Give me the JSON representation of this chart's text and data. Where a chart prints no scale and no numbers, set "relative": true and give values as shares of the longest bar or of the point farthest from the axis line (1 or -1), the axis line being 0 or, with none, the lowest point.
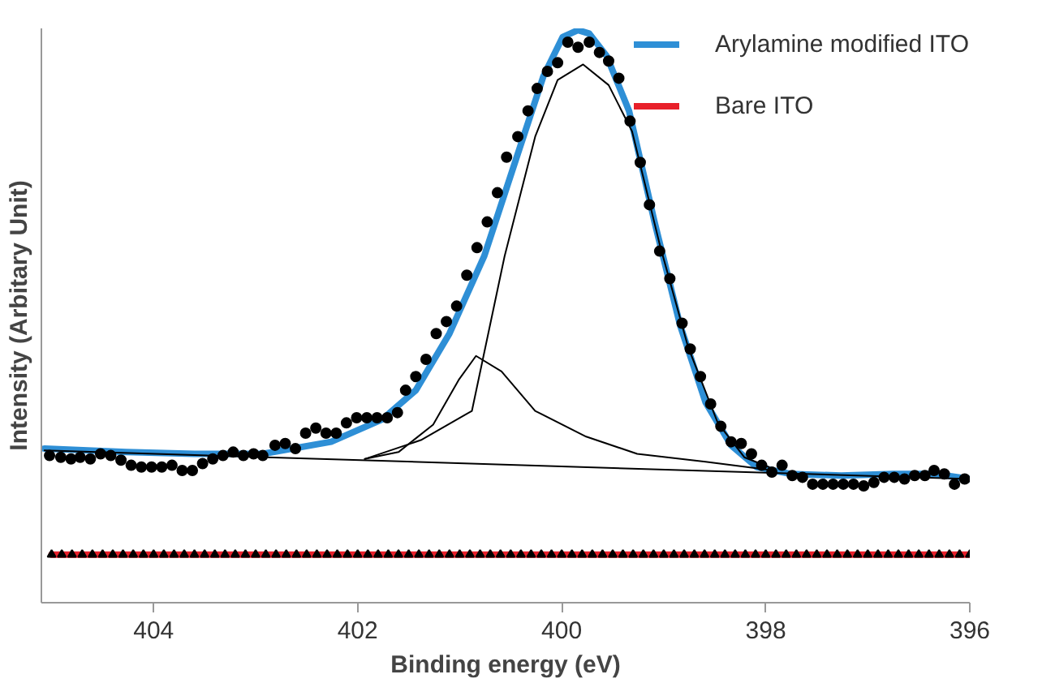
{
  "chart_data": {
    "type": "line",
    "relative": true,
    "xlabel": "Binding energy (eV)",
    "ylabel": "Intensity (Arbitary Unit)",
    "xlim": [
      405.1,
      396
    ],
    "xticks": [
      404,
      402,
      400,
      398,
      396
    ],
    "tick_labels": "x",
    "grid": false,
    "legend": "top right",
    "series": [
      {
        "name": "Arylamine modified ITO",
        "color": "#2e8fd6",
        "marker": "none",
        "x": [
          405.07,
          404.27,
          403.6,
          402.93,
          402.26,
          401.76,
          401.43,
          401.1,
          400.76,
          400.43,
          400.18,
          399.99,
          399.84,
          399.73,
          399.56,
          399.34,
          399.09,
          398.84,
          398.59,
          398.34,
          398.09,
          397.76,
          397.26,
          396.75,
          396.34,
          396.0
        ],
        "values": [
          0.269,
          0.263,
          0.26,
          0.26,
          0.281,
          0.32,
          0.371,
          0.47,
          0.605,
          0.784,
          0.919,
          0.988,
          1.0,
          0.994,
          0.955,
          0.859,
          0.665,
          0.485,
          0.35,
          0.275,
          0.237,
          0.225,
          0.222,
          0.225,
          0.225,
          0.216
        ]
      },
      {
        "name": "Bare ITO",
        "color": "#e8202a",
        "marker": "triangle",
        "x": [
          405.0,
          404.9,
          404.8,
          404.7,
          404.6,
          404.5,
          404.4,
          404.3,
          404.2,
          404.1,
          404.0,
          403.9,
          403.8,
          403.7,
          403.6,
          403.5,
          403.4,
          403.3,
          403.2,
          403.1,
          403.0,
          402.9,
          402.8,
          402.7,
          402.6,
          402.5,
          402.4,
          402.3,
          402.2,
          402.1,
          402.0,
          401.9,
          401.8,
          401.7,
          401.6,
          401.5,
          401.4,
          401.3,
          401.2,
          401.1,
          401.0,
          400.9,
          400.8,
          400.7,
          400.6,
          400.5,
          400.4,
          400.3,
          400.2,
          400.1,
          400.0,
          399.9,
          399.8,
          399.7,
          399.6,
          399.5,
          399.4,
          399.3,
          399.2,
          399.1,
          399.0,
          398.9,
          398.8,
          398.7,
          398.6,
          398.5,
          398.4,
          398.3,
          398.2,
          398.1,
          398.0,
          397.9,
          397.8,
          397.7,
          397.6,
          397.5,
          397.4,
          397.3,
          397.2,
          397.1,
          397.0,
          396.9,
          396.8,
          396.7,
          396.6,
          396.5,
          396.4,
          396.3,
          396.2,
          396.1,
          396.0
        ],
        "values": [
          0.084,
          0.084,
          0.084,
          0.084,
          0.084,
          0.084,
          0.084,
          0.084,
          0.084,
          0.084,
          0.084,
          0.084,
          0.084,
          0.084,
          0.084,
          0.084,
          0.084,
          0.084,
          0.084,
          0.084,
          0.084,
          0.084,
          0.084,
          0.084,
          0.084,
          0.084,
          0.084,
          0.084,
          0.084,
          0.084,
          0.084,
          0.084,
          0.084,
          0.084,
          0.084,
          0.084,
          0.084,
          0.084,
          0.084,
          0.084,
          0.084,
          0.084,
          0.084,
          0.084,
          0.084,
          0.084,
          0.084,
          0.084,
          0.084,
          0.084,
          0.084,
          0.084,
          0.084,
          0.084,
          0.084,
          0.084,
          0.084,
          0.084,
          0.084,
          0.084,
          0.084,
          0.084,
          0.084,
          0.084,
          0.084,
          0.084,
          0.084,
          0.084,
          0.084,
          0.084,
          0.084,
          0.084,
          0.084,
          0.084,
          0.084,
          0.084,
          0.084,
          0.084,
          0.084,
          0.084,
          0.084,
          0.084,
          0.084,
          0.084,
          0.084,
          0.084,
          0.084,
          0.084,
          0.084,
          0.084,
          0.084
        ]
      },
      {
        "color": "#000000",
        "marker": "none",
        "x": [
          405.07,
          396.0
        ],
        "values": [
          0.266,
          0.216
        ]
      },
      {
        "color": "#000000",
        "marker": "none",
        "x": [
          401.93,
          401.6,
          401.26,
          401.01,
          400.84,
          400.59,
          400.26,
          399.76,
          399.26,
          398.59,
          397.92
        ],
        "values": [
          0.251,
          0.263,
          0.311,
          0.389,
          0.431,
          0.404,
          0.335,
          0.29,
          0.26,
          0.246,
          0.231
        ]
      },
      {
        "color": "#000000",
        "marker": "none",
        "x": [
          401.93,
          401.38,
          400.88,
          400.56,
          400.26,
          400.04,
          399.79,
          399.54,
          399.31,
          399.04,
          398.76,
          398.47,
          398.21,
          397.97
        ],
        "values": [
          0.251,
          0.284,
          0.335,
          0.605,
          0.814,
          0.913,
          0.94,
          0.904,
          0.823,
          0.626,
          0.446,
          0.314,
          0.254,
          0.237
        ]
      },
      {
        "color": "#000000",
        "type": "scatter",
        "marker": "circle",
        "x": [
          405.02,
          404.91,
          404.81,
          404.72,
          404.62,
          404.52,
          404.42,
          404.32,
          404.22,
          404.12,
          404.02,
          403.92,
          403.82,
          403.72,
          403.62,
          403.52,
          403.42,
          403.32,
          403.22,
          403.12,
          403.02,
          402.93,
          402.81,
          402.71,
          402.61,
          402.51,
          402.41,
          402.31,
          402.21,
          402.11,
          402.01,
          401.91,
          401.81,
          401.71,
          401.61,
          401.53,
          401.43,
          401.33,
          401.23,
          401.13,
          401.03,
          400.93,
          400.83,
          400.73,
          400.63,
          400.54,
          400.43,
          400.33,
          400.24,
          400.14,
          400.04,
          399.94,
          399.84,
          399.73,
          399.63,
          399.54,
          399.44,
          399.33,
          399.23,
          399.14,
          399.04,
          398.94,
          398.82,
          398.74,
          398.64,
          398.54,
          398.44,
          398.34,
          398.24,
          398.14,
          398.04,
          397.94,
          397.84,
          397.74,
          397.64,
          397.54,
          397.44,
          397.34,
          397.24,
          397.14,
          397.04,
          396.94,
          396.84,
          396.74,
          396.64,
          396.54,
          396.44,
          396.35,
          396.25,
          396.15,
          396.05
        ],
        "values": [
          0.257,
          0.254,
          0.251,
          0.254,
          0.251,
          0.26,
          0.257,
          0.249,
          0.24,
          0.237,
          0.237,
          0.237,
          0.24,
          0.231,
          0.231,
          0.243,
          0.251,
          0.257,
          0.263,
          0.257,
          0.26,
          0.257,
          0.275,
          0.278,
          0.269,
          0.296,
          0.305,
          0.296,
          0.296,
          0.314,
          0.323,
          0.323,
          0.323,
          0.323,
          0.332,
          0.371,
          0.395,
          0.425,
          0.47,
          0.491,
          0.518,
          0.572,
          0.62,
          0.665,
          0.716,
          0.778,
          0.814,
          0.859,
          0.898,
          0.928,
          0.943,
          0.979,
          0.97,
          0.979,
          0.961,
          0.946,
          0.916,
          0.841,
          0.769,
          0.695,
          0.614,
          0.566,
          0.488,
          0.443,
          0.395,
          0.347,
          0.308,
          0.281,
          0.278,
          0.26,
          0.24,
          0.228,
          0.24,
          0.222,
          0.219,
          0.207,
          0.207,
          0.207,
          0.207,
          0.207,
          0.204,
          0.21,
          0.219,
          0.219,
          0.216,
          0.222,
          0.222,
          0.231,
          0.225,
          0.207,
          0.216
        ]
      }
    ]
  }
}
